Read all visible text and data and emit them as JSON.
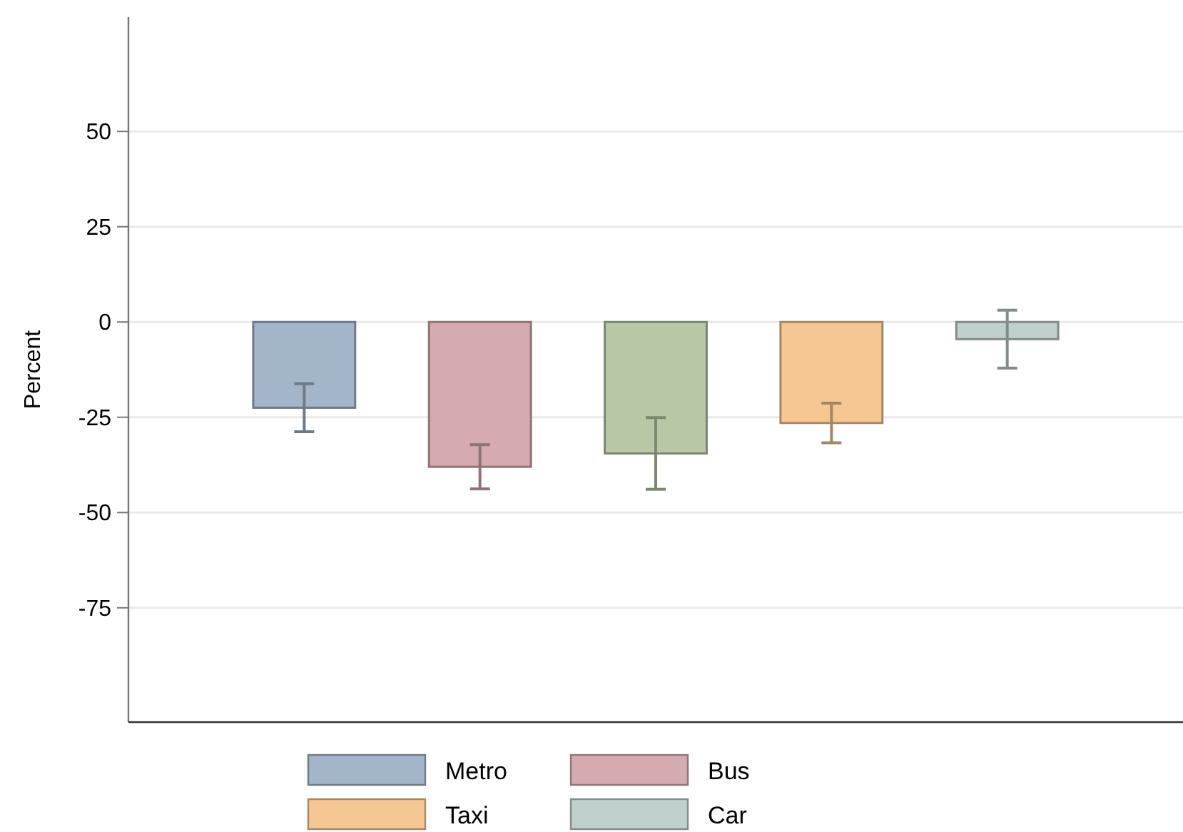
{
  "chart_data": {
    "type": "bar",
    "ylabel": "Percent",
    "categories": [
      null,
      null,
      null,
      null,
      null
    ],
    "series": [
      {
        "name": "Metro",
        "color": "#a3b5c8",
        "values": [
          -22.5,
          null,
          null,
          null,
          null
        ],
        "errors": [
          6.3,
          null,
          null,
          null,
          null
        ]
      },
      {
        "name": "Bus",
        "color": "#d5aab0",
        "values": [
          null,
          -38,
          null,
          null,
          null
        ],
        "errors": [
          null,
          5.8,
          null,
          null,
          null
        ]
      },
      {
        "color": "#b8c8a6",
        "values": [
          null,
          null,
          -34.5,
          null,
          null
        ],
        "errors": [
          null,
          null,
          9.4,
          null,
          null
        ]
      },
      {
        "name": "Taxi",
        "color": "#f5c893",
        "values": [
          null,
          null,
          null,
          -26.5,
          null
        ],
        "errors": [
          null,
          null,
          null,
          5.2,
          null
        ]
      },
      {
        "name": "Car",
        "color": "#c0d0cc",
        "values": [
          null,
          null,
          null,
          null,
          -4.5
        ],
        "errors": [
          null,
          null,
          null,
          null,
          7.6
        ]
      }
    ],
    "ylim": [
      -105,
      80
    ],
    "yticks": [
      -75,
      -50,
      -25,
      0,
      25,
      50
    ],
    "grid": "y",
    "legend": "bottom",
    "tick_labels": "y"
  }
}
